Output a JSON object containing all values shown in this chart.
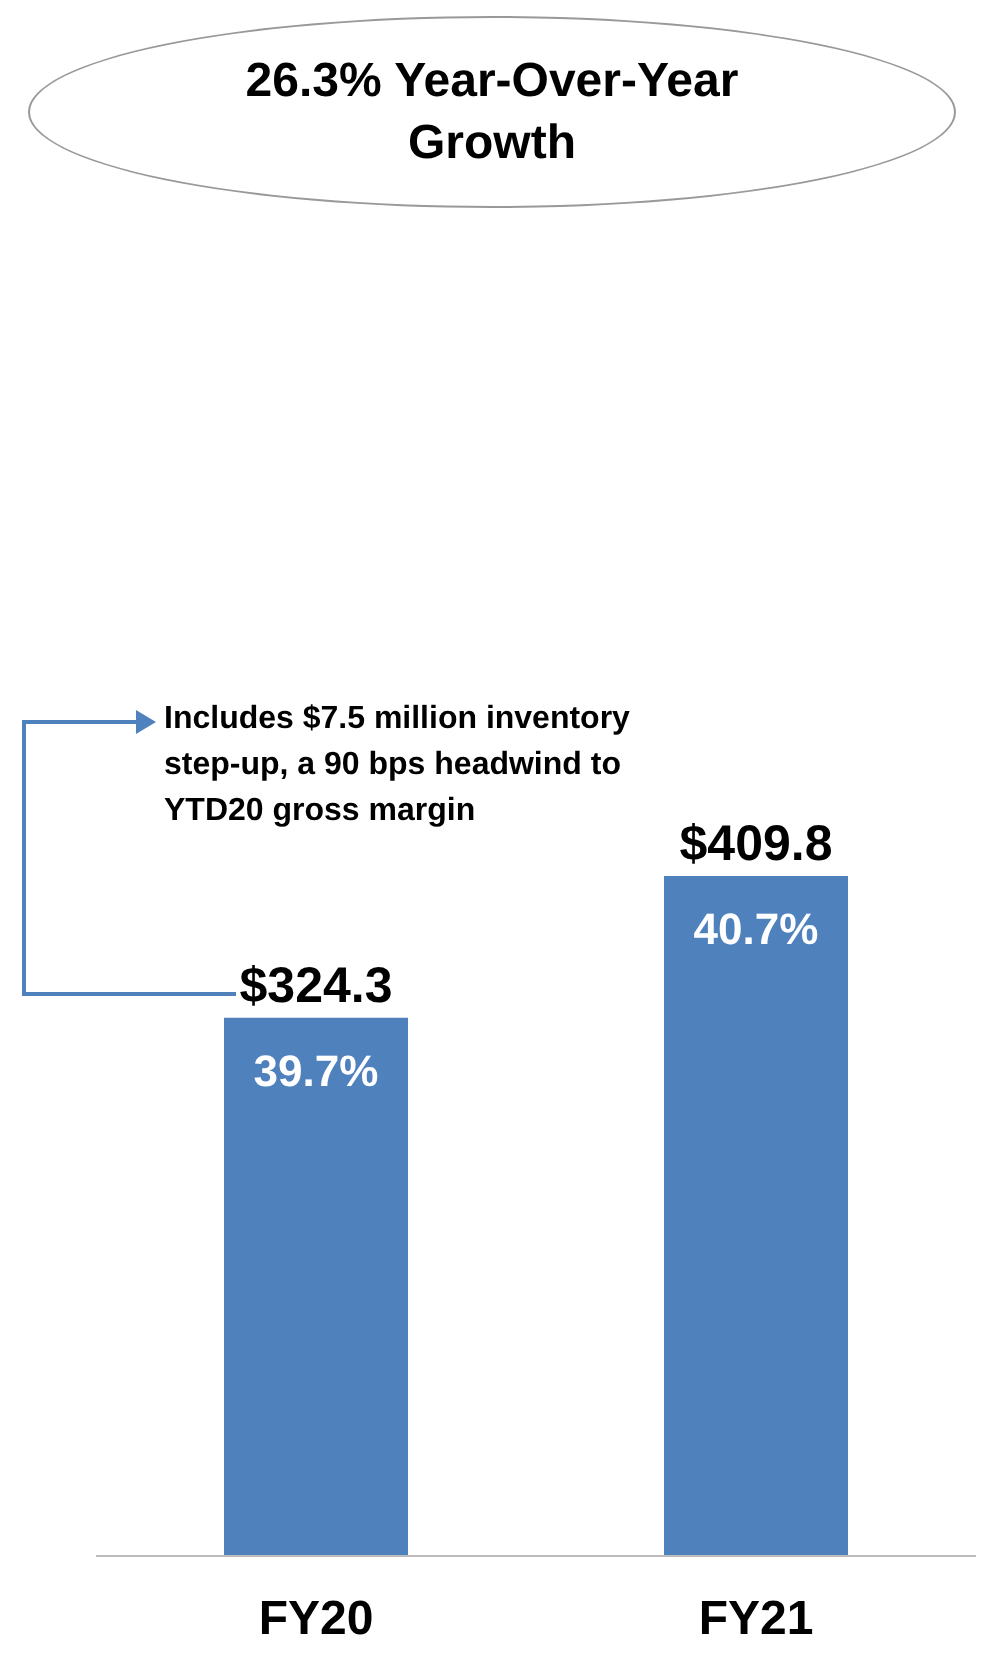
{
  "chart_data": {
    "type": "bar",
    "title": "26.3% Year-Over-Year Growth",
    "categories": [
      "FY20",
      "FY21"
    ],
    "values": [
      324.3,
      409.8
    ],
    "value_labels": [
      "$324.3",
      "$409.8"
    ],
    "color": "#4f81bd",
    "annotations": [
      "Includes $7.5 million inventory step-up, a 90 bps headwind to YTD20 gross margin",
      "39.7%",
      "40.7%"
    ],
    "grid": false,
    "legend": false
  }
}
